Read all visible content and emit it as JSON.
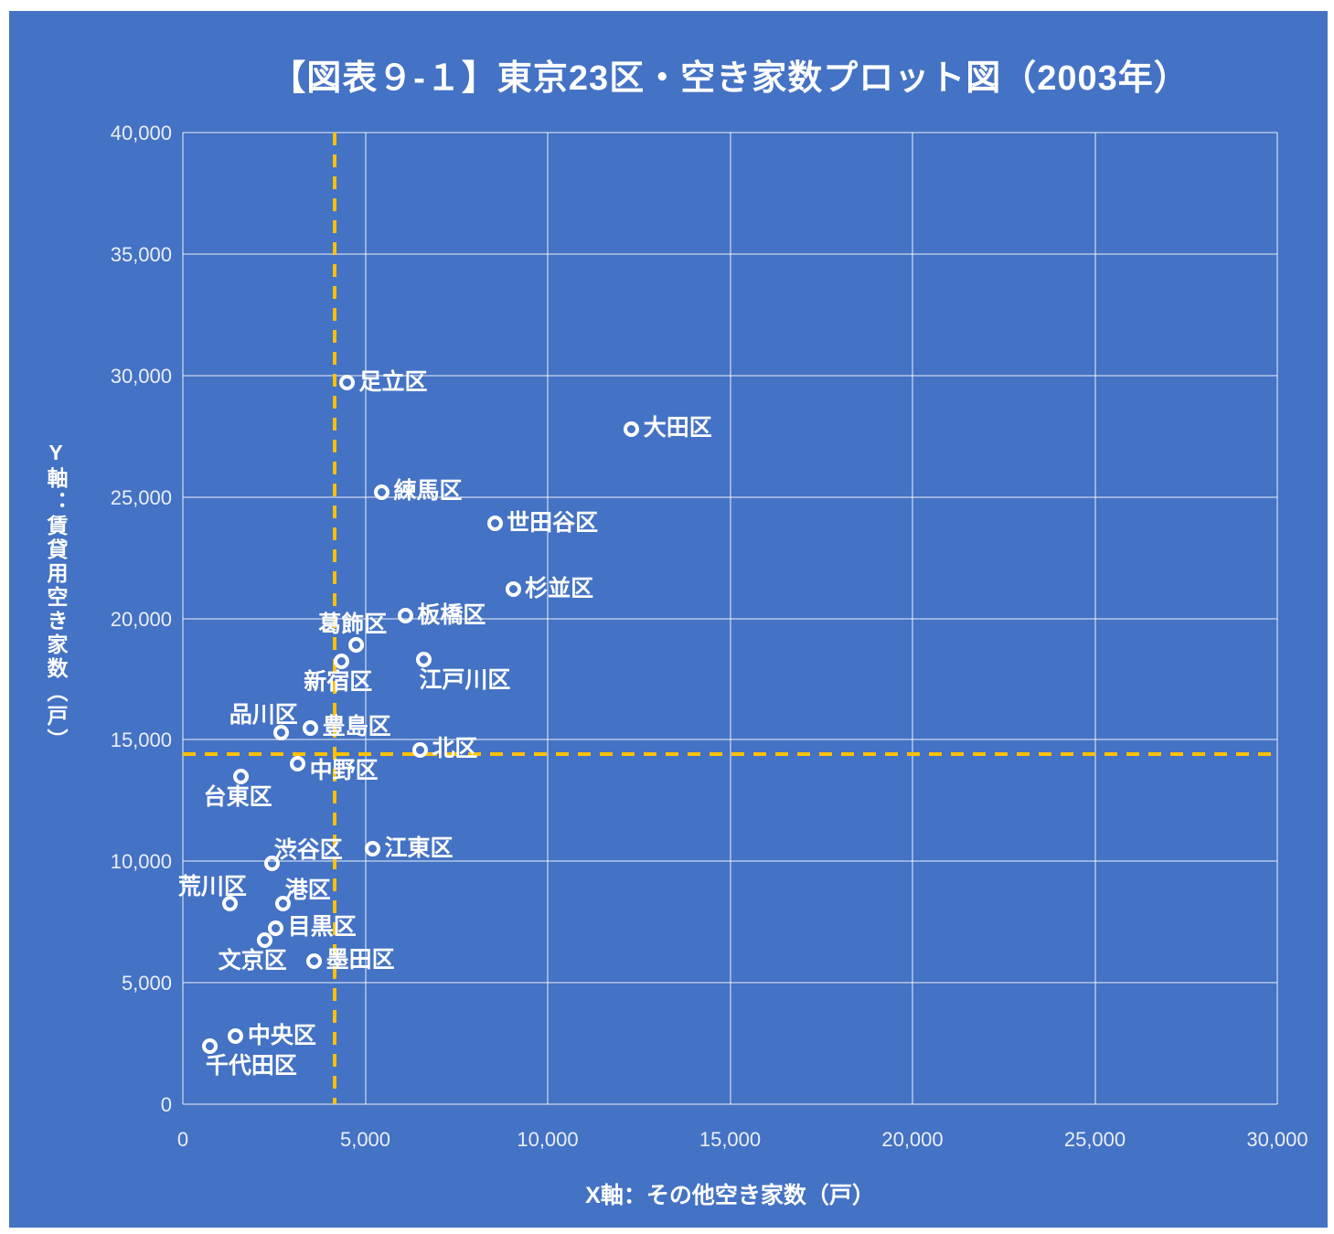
{
  "chart": {
    "background_color": "#4472C4",
    "text_color": "#FFFFFF",
    "gridline_color": "rgba(255,255,255,0.45)",
    "reference_line_color": "#FFC000",
    "marker_color": "#FFFFFF",
    "marker_style": "open-circle"
  },
  "chart_data": {
    "type": "scatter",
    "title": "【図表９-１】東京23区・空き家数プロット図（2003年）",
    "xlabel": "X軸：その他空き家数（戸）",
    "ylabel": "Y軸：賃貸用空き家数（戸）",
    "xlim": [
      0,
      30000
    ],
    "ylim": [
      0,
      40000
    ],
    "grid": true,
    "legend": "none",
    "x_tick_values": [
      0,
      5000,
      10000,
      15000,
      20000,
      25000,
      30000
    ],
    "x_tick_labels": [
      "0",
      "5,000",
      "10,000",
      "15,000",
      "20,000",
      "25,000",
      "30,000"
    ],
    "y_tick_values": [
      0,
      5000,
      10000,
      15000,
      20000,
      25000,
      30000,
      35000,
      40000
    ],
    "y_tick_labels": [
      "0",
      "5,000",
      "10,000",
      "15,000",
      "20,000",
      "25,000",
      "30,000",
      "35,000",
      "40,000"
    ],
    "reference_lines": {
      "style": "dashed",
      "vertical_x": 4150,
      "horizontal_y": 14400
    },
    "points": [
      {
        "name": "足立区",
        "x": 4500,
        "y": 29700,
        "label_pos": "right"
      },
      {
        "name": "大田区",
        "x": 12300,
        "y": 27800,
        "label_pos": "right"
      },
      {
        "name": "練馬区",
        "x": 5450,
        "y": 25200,
        "label_pos": "right"
      },
      {
        "name": "世田谷区",
        "x": 8550,
        "y": 23900,
        "label_pos": "right"
      },
      {
        "name": "杉並区",
        "x": 9050,
        "y": 21200,
        "label_pos": "right"
      },
      {
        "name": "板橋区",
        "x": 6100,
        "y": 20100,
        "label_pos": "right"
      },
      {
        "name": "葛飾区",
        "x": 4750,
        "y": 18900,
        "label_pos": "above"
      },
      {
        "name": "新宿区",
        "x": 4350,
        "y": 18250,
        "label_pos": "below"
      },
      {
        "name": "江戸川区",
        "x": 6600,
        "y": 18300,
        "label_pos": "below-right"
      },
      {
        "name": "豊島区",
        "x": 3500,
        "y": 15500,
        "label_pos": "right"
      },
      {
        "name": "品川区",
        "x": 2700,
        "y": 15300,
        "label_pos": "above-left"
      },
      {
        "name": "北区",
        "x": 6500,
        "y": 14600,
        "label_pos": "right"
      },
      {
        "name": "中野区",
        "x": 3150,
        "y": 14000,
        "label_pos": "right-down"
      },
      {
        "name": "台東区",
        "x": 1600,
        "y": 13500,
        "label_pos": "below"
      },
      {
        "name": "江東区",
        "x": 5200,
        "y": 10500,
        "label_pos": "right"
      },
      {
        "name": "渋谷区",
        "x": 2450,
        "y": 9900,
        "label_pos": "above-right"
      },
      {
        "name": "荒川区",
        "x": 1300,
        "y": 8250,
        "label_pos": "above-left"
      },
      {
        "name": "港区",
        "x": 2750,
        "y": 8250,
        "label_pos": "above-right"
      },
      {
        "name": "目黒区",
        "x": 2550,
        "y": 7250,
        "label_pos": "right"
      },
      {
        "name": "文京区",
        "x": 2250,
        "y": 6750,
        "label_pos": "below-left"
      },
      {
        "name": "墨田区",
        "x": 3600,
        "y": 5900,
        "label_pos": "right"
      },
      {
        "name": "中央区",
        "x": 1450,
        "y": 2800,
        "label_pos": "right"
      },
      {
        "name": "千代田区",
        "x": 750,
        "y": 2400,
        "label_pos": "below-right"
      }
    ]
  }
}
